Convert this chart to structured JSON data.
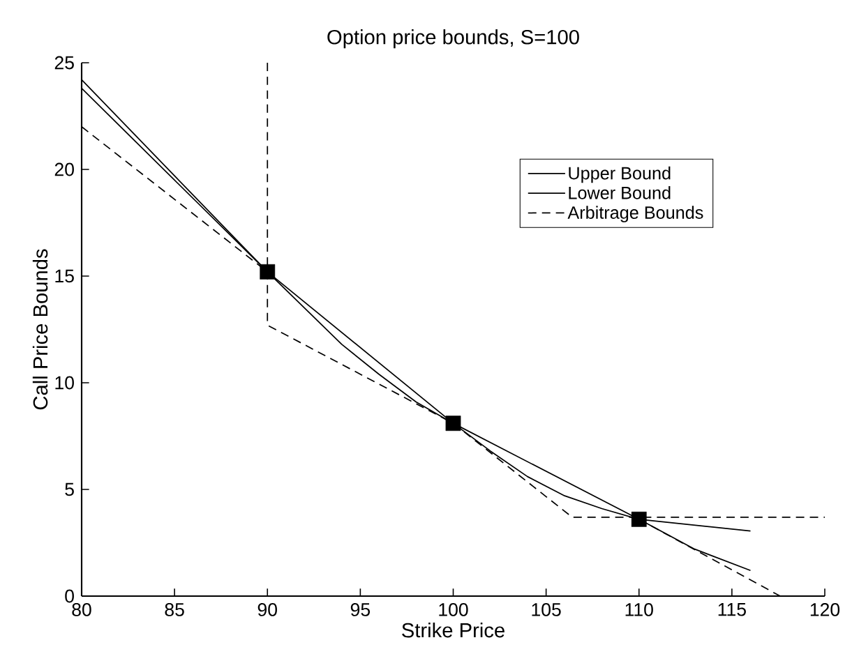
{
  "chart_data": {
    "type": "line",
    "title": "Option price bounds, S=100",
    "xlabel": "Strike Price",
    "ylabel": "Call Price Bounds",
    "xlim": [
      80,
      120
    ],
    "ylim": [
      0,
      25
    ],
    "xticks": [
      80,
      85,
      90,
      95,
      100,
      105,
      110,
      115,
      120
    ],
    "yticks": [
      0,
      5,
      10,
      15,
      20,
      25
    ],
    "legend": "top right",
    "grid": false,
    "series": [
      {
        "name": "Upper Bound",
        "color": "#000000",
        "line_style": "solid",
        "x": [
          80,
          90,
          100,
          110,
          116
        ],
        "values": [
          24.2,
          15.2,
          8.1,
          3.6,
          3.05
        ]
      },
      {
        "name": "Lower Bound",
        "color": "#000000",
        "line_style": "solid",
        "x": [
          80,
          90,
          92,
          94,
          96,
          98,
          100,
          102,
          104,
          106,
          108,
          110,
          113,
          116
        ],
        "values": [
          23.8,
          15.2,
          13.5,
          11.8,
          10.4,
          9.1,
          8.1,
          6.8,
          5.6,
          4.7,
          4.1,
          3.6,
          2.2,
          1.2
        ]
      },
      {
        "name": "Arbitrage Bounds",
        "color": "#000000",
        "line_style": "dashed",
        "x": [
          90,
          90,
          100,
          106.4,
          120
        ],
        "values": [
          25,
          12.7,
          8.1,
          3.7,
          3.7
        ]
      },
      {
        "color": "#000000",
        "line_style": "dashed",
        "x": [
          80,
          90
        ],
        "values": [
          22,
          15.2
        ]
      },
      {
        "color": "#000000",
        "line_style": "dashed",
        "x": [
          110,
          117.6
        ],
        "values": [
          3.6,
          0
        ]
      },
      {
        "type": "scatter",
        "marker": "square",
        "color": "#000000",
        "x": [
          90,
          100,
          110
        ],
        "values": [
          15.2,
          8.1,
          3.6
        ]
      }
    ]
  }
}
